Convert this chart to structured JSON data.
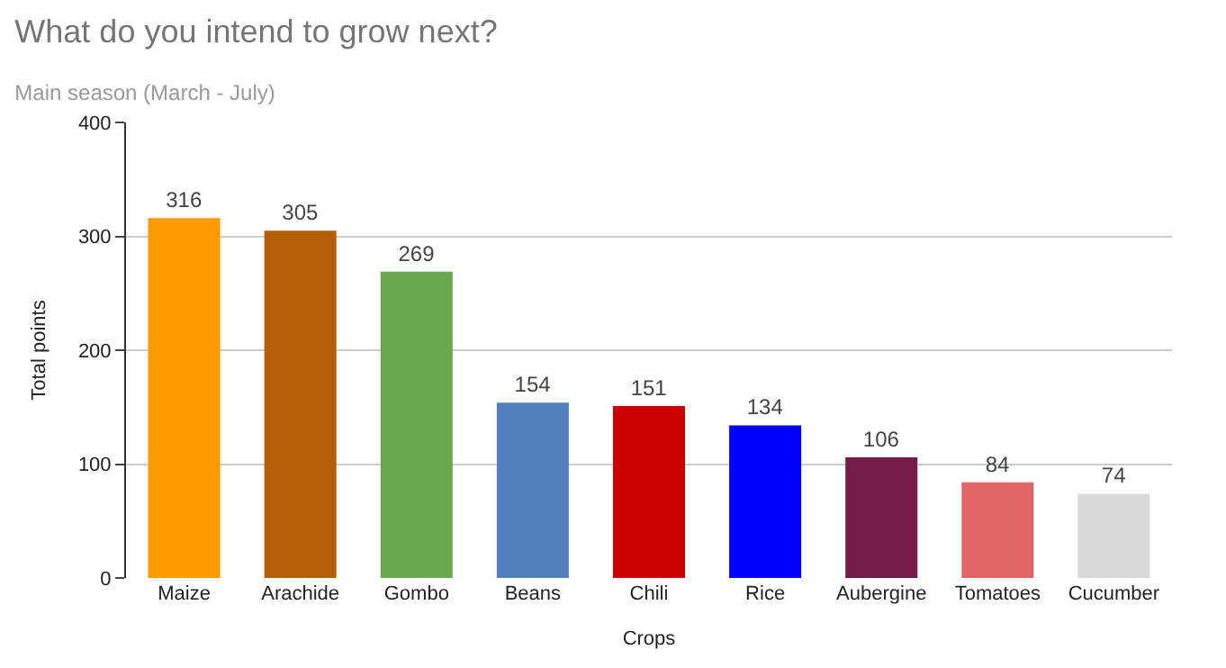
{
  "chart_data": {
    "type": "bar",
    "title": "What do you intend to grow next?",
    "subtitle": "Main season (March - July)",
    "xlabel": "Crops",
    "ylabel": "Total points",
    "categories": [
      "Maize",
      "Arachide",
      "Gombo",
      "Beans",
      "Chili",
      "Rice",
      "Aubergine",
      "Tomatoes",
      "Cucumber"
    ],
    "values": [
      316,
      305,
      269,
      154,
      151,
      134,
      106,
      84,
      74
    ],
    "colors": [
      "#ff9900",
      "#b45f06",
      "#6aa84f",
      "#4f81bd",
      "#cc0000",
      "#0000ff",
      "#741b47",
      "#e06666",
      "#d9d9d9"
    ],
    "ylim": [
      0,
      400
    ],
    "yticks": [
      0,
      100,
      200,
      300,
      400
    ],
    "grid": "y",
    "data_labels": true
  }
}
